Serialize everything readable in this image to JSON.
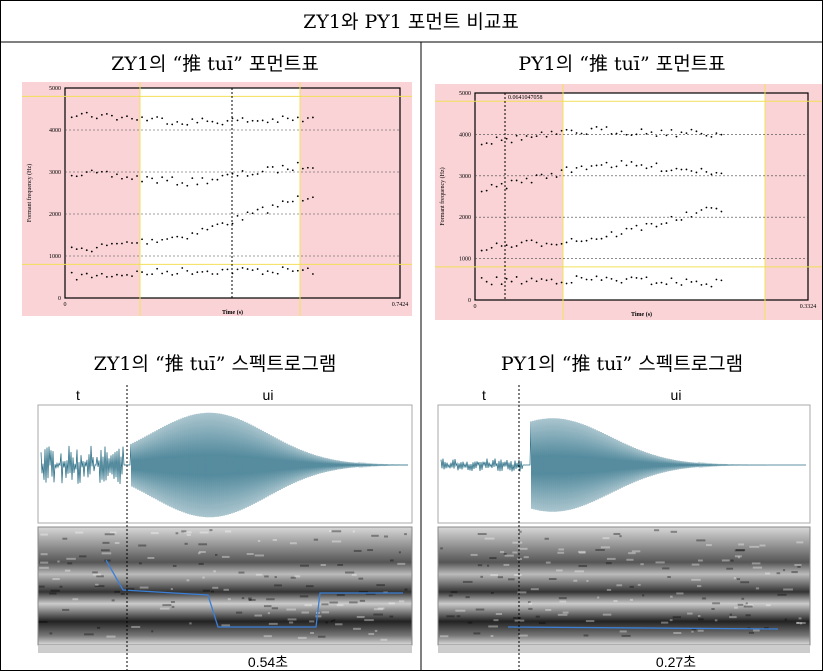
{
  "header": {
    "title": "ZY1와 PY1 포먼트 비교표"
  },
  "panels": [
    {
      "title": "ZY1의 “推 tuī” 포먼트표",
      "chart": {
        "y_label": "Formant frequency (Hz)",
        "x_label": "Time (s)",
        "yticks": [
          "0",
          "1000",
          "2000",
          "3000",
          "4000",
          "5000"
        ],
        "xticks": [
          "0",
          "0.7424"
        ]
      },
      "spectrogram": {
        "title": "ZY1의 “推 tuī” 스펙트로그램",
        "segments": [
          "t",
          "ui"
        ],
        "duration": "0.54초"
      }
    },
    {
      "title": "PY1의 “推 tuī” 포먼트표",
      "chart": {
        "y_label": "Formant frequency (Hz)",
        "x_label": "Time (s)",
        "yticks": [
          "0",
          "1000",
          "2000",
          "3000",
          "4000",
          "5000"
        ],
        "xticks": [
          "0",
          "0.3324"
        ],
        "cursor_label": "0.0641047058"
      },
      "spectrogram": {
        "title": "PY1의 “推 tuī” 스펙트로그램",
        "segments": [
          "t",
          "ui"
        ],
        "duration": "0.27초"
      }
    }
  ]
}
